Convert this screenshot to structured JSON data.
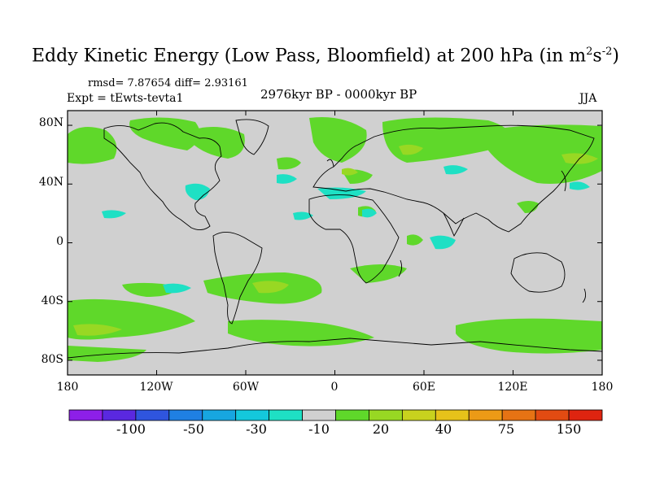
{
  "title": {
    "main": "Eddy Kinetic Energy (Low Pass, Bloomfield) at 200 hPa (in m",
    "sup1": "2",
    "mid": "s",
    "sup2": "-2",
    "end": ")"
  },
  "stats": {
    "rmsd_text": "rmsd= 7.87654 diff= 2.93161"
  },
  "experiment": "Expt = tEwts-tevta1",
  "period": "2976kyr BP - 0000kyr BP",
  "season": "JJA",
  "axes": {
    "y_labels": [
      "80N",
      "40N",
      "0",
      "40S",
      "80S"
    ],
    "y_values": [
      80,
      40,
      0,
      -40,
      -80
    ],
    "x_labels": [
      "180",
      "120W",
      "60W",
      "0",
      "60E",
      "120E",
      "180"
    ],
    "x_values": [
      -180,
      -120,
      -60,
      0,
      60,
      120,
      180
    ]
  },
  "colorbar": {
    "colors": [
      "#8d1fe8",
      "#5a28e0",
      "#2f55de",
      "#1f80e3",
      "#17a6e0",
      "#14c8dc",
      "#1ee0c4",
      "#d0d0d0",
      "#5fd82a",
      "#98d823",
      "#c8d21e",
      "#e6c21a",
      "#ec9a16",
      "#e67314",
      "#e24b12",
      "#de2410"
    ],
    "labels": [
      "-100",
      "-50",
      "-30",
      "-10",
      "20",
      "40",
      "75",
      "150"
    ]
  },
  "colors": {
    "neutral": "#d0d0d0",
    "positive_light": "#5fd82a",
    "positive_mid": "#98d823",
    "negative_light": "#1ee0c4"
  }
}
